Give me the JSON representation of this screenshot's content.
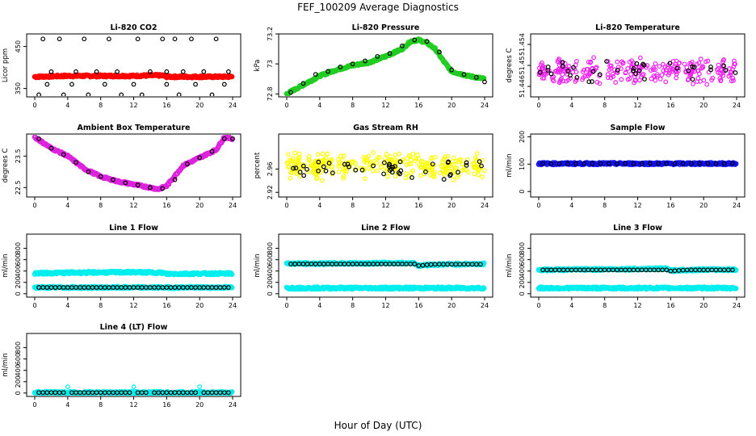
{
  "figure": {
    "title": "FEF_100209  Average Diagnostics",
    "xlabel": "Hour of Day (UTC)"
  },
  "chart_data": [
    {
      "type": "scatter",
      "title": "Li-820 CO2",
      "ylabel": "Licor ppm",
      "xlim": [
        0,
        24
      ],
      "xticks": [
        0,
        4,
        8,
        12,
        16,
        20,
        24
      ],
      "ylim": [
        330,
        480
      ],
      "yticks": [
        350,
        450
      ],
      "series": [
        {
          "color": "#ff0000",
          "kind": "line",
          "x": [
            0,
            4,
            8,
            12,
            14,
            15.5,
            16,
            20,
            24
          ],
          "y": [
            378,
            380,
            380,
            380,
            381,
            381,
            378,
            378,
            378
          ]
        },
        {
          "color": "#000000",
          "kind": "points",
          "x": [
            1,
            2,
            3,
            5,
            6,
            7.5,
            9,
            10,
            12.5,
            14,
            15.5,
            16,
            17,
            18,
            19,
            20.5,
            22,
            23.5
          ],
          "y": [
            468,
            390,
            468,
            390,
            468,
            390,
            468,
            390,
            468,
            390,
            468,
            390,
            468,
            390,
            468,
            390,
            468,
            390
          ]
        },
        {
          "color": "#000000",
          "kind": "points",
          "x": [
            0.5,
            1.5,
            3.5,
            4.5,
            6.5,
            8.5,
            10.5,
            12,
            13,
            16,
            17.5,
            19.5,
            21.5,
            23
          ],
          "y": [
            335,
            360,
            335,
            360,
            335,
            360,
            335,
            360,
            335,
            360,
            335,
            360,
            335,
            360
          ]
        }
      ]
    },
    {
      "type": "scatter",
      "title": "Li-820 Pressure",
      "ylabel": "kPa",
      "xlim": [
        0,
        24
      ],
      "xticks": [
        0,
        4,
        8,
        12,
        16,
        20,
        24
      ],
      "ylim": [
        72.78,
        73.2
      ],
      "yticks": [
        72.8,
        73.0,
        73.2
      ],
      "series": [
        {
          "color": "#22cc22",
          "kind": "line",
          "x": [
            0,
            2,
            4,
            6,
            8,
            10,
            12,
            14,
            15,
            16,
            17,
            18,
            19,
            20,
            22,
            24
          ],
          "y": [
            72.8,
            72.86,
            72.92,
            72.96,
            72.99,
            73.01,
            73.05,
            73.1,
            73.15,
            73.16,
            73.14,
            73.1,
            73.02,
            72.95,
            72.92,
            72.9
          ]
        },
        {
          "color": "#000000",
          "kind": "points",
          "x": [
            0.5,
            2,
            3.5,
            5,
            6.5,
            8,
            9.5,
            11,
            12.5,
            14,
            15.5,
            17,
            18.5,
            20,
            21.5,
            23,
            24
          ],
          "y": [
            72.81,
            72.87,
            72.93,
            72.95,
            72.98,
            73.0,
            73.02,
            73.05,
            73.07,
            73.12,
            73.16,
            73.15,
            73.08,
            72.96,
            72.93,
            72.91,
            72.88
          ]
        }
      ]
    },
    {
      "type": "scatter",
      "title": "Li-820 Temperature",
      "ylabel": "degrees C",
      "xlim": [
        0,
        24
      ],
      "xticks": [
        0,
        4,
        8,
        12,
        16,
        20,
        24
      ],
      "ylim": [
        51.444,
        51.456
      ],
      "yticks": [
        51.446,
        51.45,
        51.454
      ],
      "series": [
        {
          "color": "#ee22ee",
          "kind": "noise",
          "mean": 51.449,
          "spread": 0.0028,
          "n": 260
        },
        {
          "color": "#000000",
          "kind": "noise",
          "mean": 51.449,
          "spread": 0.0025,
          "n": 35
        }
      ]
    },
    {
      "type": "scatter",
      "title": "Ambient Box Temperature",
      "ylabel": "degrees C",
      "xlim": [
        0,
        24
      ],
      "xticks": [
        0,
        4,
        8,
        12,
        16,
        20,
        24
      ],
      "ylim": [
        22.2,
        24.2
      ],
      "yticks": [
        22.5,
        23.5
      ],
      "series": [
        {
          "color": "#dd22dd",
          "kind": "line",
          "x": [
            0,
            2,
            4,
            6,
            8,
            10,
            12,
            14,
            15,
            16,
            18,
            20,
            22,
            23,
            24
          ],
          "y": [
            24.1,
            23.75,
            23.5,
            23.1,
            22.85,
            22.7,
            22.6,
            22.5,
            22.45,
            22.55,
            23.2,
            23.45,
            23.7,
            24.1,
            24.05
          ]
        },
        {
          "color": "#000000",
          "kind": "points",
          "x": [
            0.5,
            2,
            3.5,
            5,
            6.5,
            8,
            9.5,
            11,
            12.5,
            14,
            15.5,
            17,
            18.5,
            20,
            21.5,
            23,
            24
          ],
          "y": [
            24.05,
            23.75,
            23.55,
            23.3,
            23.0,
            22.85,
            22.75,
            22.65,
            22.58,
            22.5,
            22.47,
            22.75,
            23.25,
            23.45,
            23.65,
            24.05,
            24.05
          ]
        }
      ]
    },
    {
      "type": "scatter",
      "title": "Gas Stream RH",
      "ylabel": "percent",
      "xlim": [
        0,
        24
      ],
      "xticks": [
        0,
        4,
        8,
        12,
        16,
        20,
        24
      ],
      "ylim": [
        2.912,
        3.02
      ],
      "yticks": [
        2.92,
        2.96
      ],
      "series": [
        {
          "color": "#ffff00",
          "kind": "noise",
          "mean": 2.965,
          "spread": 0.025,
          "n": 300
        },
        {
          "color": "#000000",
          "kind": "noise",
          "mean": 2.963,
          "spread": 0.022,
          "n": 45
        }
      ]
    },
    {
      "type": "scatter",
      "title": "Sample Flow",
      "ylabel": "ml/min",
      "xlim": [
        0,
        24
      ],
      "xticks": [
        0,
        4,
        8,
        12,
        16,
        20,
        24
      ],
      "ylim": [
        -20,
        210
      ],
      "yticks": [
        0,
        100,
        200
      ],
      "series": [
        {
          "color": "#1111ee",
          "kind": "line",
          "x": [
            0,
            24
          ],
          "y": [
            102,
            102
          ]
        },
        {
          "color": "#000000",
          "kind": "points",
          "x": [
            0.5,
            1.5,
            2.5,
            3.5,
            4.5,
            5.5,
            6.5,
            7.5,
            8.5,
            9.5,
            10.5,
            11.5,
            12.5,
            13.5,
            14.5,
            15.5,
            16.5,
            17.5,
            18.5,
            19.5,
            20.5,
            21.5,
            22.5,
            23.5
          ],
          "y": [
            102,
            102,
            102,
            102,
            102,
            102,
            102,
            102,
            102,
            102,
            102,
            102,
            102,
            102,
            102,
            102,
            102,
            102,
            102,
            102,
            102,
            102,
            102,
            102
          ]
        }
      ]
    },
    {
      "type": "scatter",
      "title": "Line 1 Flow",
      "ylabel": "ml/min",
      "xlim": [
        0,
        24
      ],
      "xticks": [
        0,
        4,
        8,
        12,
        16,
        20,
        24
      ],
      "ylim": [
        -60,
        1050
      ],
      "yticks": [
        0,
        200,
        400,
        600,
        800
      ],
      "series": [
        {
          "color": "#00eeee",
          "kind": "line",
          "x": [
            0,
            4,
            8,
            12,
            15.5,
            16,
            20,
            24
          ],
          "y": [
            360,
            370,
            375,
            380,
            370,
            350,
            355,
            355
          ]
        },
        {
          "color": "#00eeee",
          "kind": "line",
          "x": [
            0,
            24
          ],
          "y": [
            110,
            110
          ]
        },
        {
          "color": "#000000",
          "kind": "points",
          "x": [
            0.5,
            1,
            1.5,
            2,
            2.5,
            3,
            3.5,
            4,
            4.5,
            5,
            5.5,
            6,
            6.5,
            7,
            7.5,
            8,
            8.5,
            9,
            9.5,
            10,
            10.5,
            11,
            11.5,
            12,
            12.5,
            13,
            13.5,
            14,
            14.5,
            15,
            15.5,
            16,
            16.5,
            17,
            17.5,
            18,
            18.5,
            19,
            19.5,
            20,
            20.5,
            21,
            21.5,
            22,
            22.5,
            23,
            23.5
          ],
          "y": [
            110,
            110,
            110,
            110,
            110,
            110,
            110,
            110,
            110,
            110,
            110,
            110,
            110,
            110,
            110,
            110,
            110,
            110,
            110,
            110,
            110,
            110,
            110,
            110,
            110,
            110,
            110,
            110,
            110,
            110,
            110,
            110,
            110,
            110,
            110,
            110,
            110,
            110,
            110,
            110,
            110,
            110,
            110,
            110,
            110,
            110,
            110
          ]
        }
      ]
    },
    {
      "type": "scatter",
      "title": "Line 2 Flow",
      "ylabel": "ml/min",
      "xlim": [
        0,
        24
      ],
      "xticks": [
        0,
        4,
        8,
        12,
        16,
        20,
        24
      ],
      "ylim": [
        -60,
        1050
      ],
      "yticks": [
        0,
        200,
        400,
        600,
        800
      ],
      "series": [
        {
          "color": "#00eeee",
          "kind": "line",
          "x": [
            0,
            24
          ],
          "y": [
            100,
            100
          ]
        },
        {
          "color": "#00eeee",
          "kind": "line",
          "x": [
            0,
            4,
            8,
            12,
            15.5,
            16,
            17,
            20,
            24
          ],
          "y": [
            530,
            530,
            535,
            540,
            540,
            490,
            510,
            520,
            525
          ]
        },
        {
          "color": "#000000",
          "kind": "points",
          "x": [
            0.5,
            1,
            1.5,
            2,
            2.5,
            3,
            3.5,
            4,
            4.5,
            5,
            5.5,
            6,
            6.5,
            7,
            7.5,
            8,
            8.5,
            9,
            9.5,
            10,
            10.5,
            11,
            11.5,
            12,
            12.5,
            13,
            13.5,
            14,
            14.5,
            15,
            15.5,
            16,
            16.5,
            17,
            17.5,
            18,
            18.5,
            19,
            19.5,
            20,
            20.5,
            21,
            21.5,
            22,
            22.5,
            23,
            23.5
          ],
          "y": [
            525,
            525,
            525,
            525,
            525,
            525,
            525,
            525,
            525,
            525,
            525,
            525,
            525,
            525,
            525,
            525,
            525,
            525,
            525,
            525,
            525,
            525,
            525,
            525,
            525,
            525,
            525,
            525,
            525,
            525,
            525,
            495,
            500,
            510,
            515,
            520,
            520,
            520,
            520,
            520,
            520,
            520,
            520,
            520,
            520,
            520,
            520
          ]
        }
      ]
    },
    {
      "type": "scatter",
      "title": "Line 3 Flow",
      "ylabel": "ml/min",
      "xlim": [
        0,
        24
      ],
      "xticks": [
        0,
        4,
        8,
        12,
        16,
        20,
        24
      ],
      "ylim": [
        -60,
        1050
      ],
      "yticks": [
        0,
        200,
        400,
        600,
        800
      ],
      "series": [
        {
          "color": "#00eeee",
          "kind": "line",
          "x": [
            0,
            24
          ],
          "y": [
            100,
            100
          ]
        },
        {
          "color": "#00eeee",
          "kind": "line",
          "x": [
            0,
            4,
            8,
            12,
            15.5,
            16,
            17,
            20,
            24
          ],
          "y": [
            420,
            425,
            430,
            435,
            440,
            405,
            415,
            425,
            425
          ]
        },
        {
          "color": "#000000",
          "kind": "points",
          "x": [
            0.5,
            1,
            1.5,
            2,
            2.5,
            3,
            3.5,
            4,
            4.5,
            5,
            5.5,
            6,
            6.5,
            7,
            7.5,
            8,
            8.5,
            9,
            9.5,
            10,
            10.5,
            11,
            11.5,
            12,
            12.5,
            13,
            13.5,
            14,
            14.5,
            15,
            15.5,
            16,
            16.5,
            17,
            17.5,
            18,
            18.5,
            19,
            19.5,
            20,
            20.5,
            21,
            21.5,
            22,
            22.5,
            23,
            23.5
          ],
          "y": [
            420,
            420,
            420,
            420,
            420,
            420,
            420,
            420,
            420,
            420,
            420,
            420,
            420,
            420,
            420,
            420,
            420,
            420,
            420,
            420,
            420,
            420,
            420,
            420,
            420,
            420,
            420,
            420,
            420,
            420,
            420,
            400,
            405,
            410,
            415,
            420,
            420,
            420,
            420,
            420,
            420,
            420,
            420,
            420,
            420,
            420,
            420
          ]
        }
      ]
    },
    {
      "type": "scatter",
      "title": "Line 4 (LT) Flow",
      "ylabel": "ml/min",
      "xlim": [
        0,
        24
      ],
      "xticks": [
        0,
        4,
        8,
        12,
        16,
        20,
        24
      ],
      "ylim": [
        -60,
        1050
      ],
      "yticks": [
        0,
        200,
        400,
        600,
        800
      ],
      "series": [
        {
          "color": "#00eeee",
          "kind": "line",
          "x": [
            0,
            24
          ],
          "y": [
            8,
            8
          ]
        },
        {
          "color": "#00eeee",
          "kind": "points",
          "x": [
            4,
            12,
            20
          ],
          "y": [
            110,
            110,
            110
          ]
        },
        {
          "color": "#000000",
          "kind": "points",
          "x": [
            0.5,
            1,
            1.5,
            2,
            2.5,
            3,
            3.5,
            4.5,
            5,
            5.5,
            6,
            6.5,
            7,
            7.5,
            8,
            8.5,
            9,
            9.5,
            10,
            10.5,
            11,
            11.5,
            12.5,
            13,
            13.5,
            14.5,
            15,
            15.5,
            16,
            16.5,
            17,
            17.5,
            18,
            18.5,
            19,
            19.5,
            20.5,
            21,
            21.5,
            22,
            22.5,
            23,
            23.5
          ],
          "y": [
            8,
            8,
            8,
            8,
            8,
            8,
            8,
            8,
            8,
            8,
            8,
            8,
            8,
            8,
            8,
            8,
            8,
            8,
            8,
            8,
            8,
            8,
            8,
            8,
            8,
            8,
            8,
            8,
            8,
            8,
            8,
            8,
            8,
            8,
            8,
            8,
            8,
            8,
            8,
            8,
            8,
            8,
            8
          ]
        }
      ]
    }
  ]
}
